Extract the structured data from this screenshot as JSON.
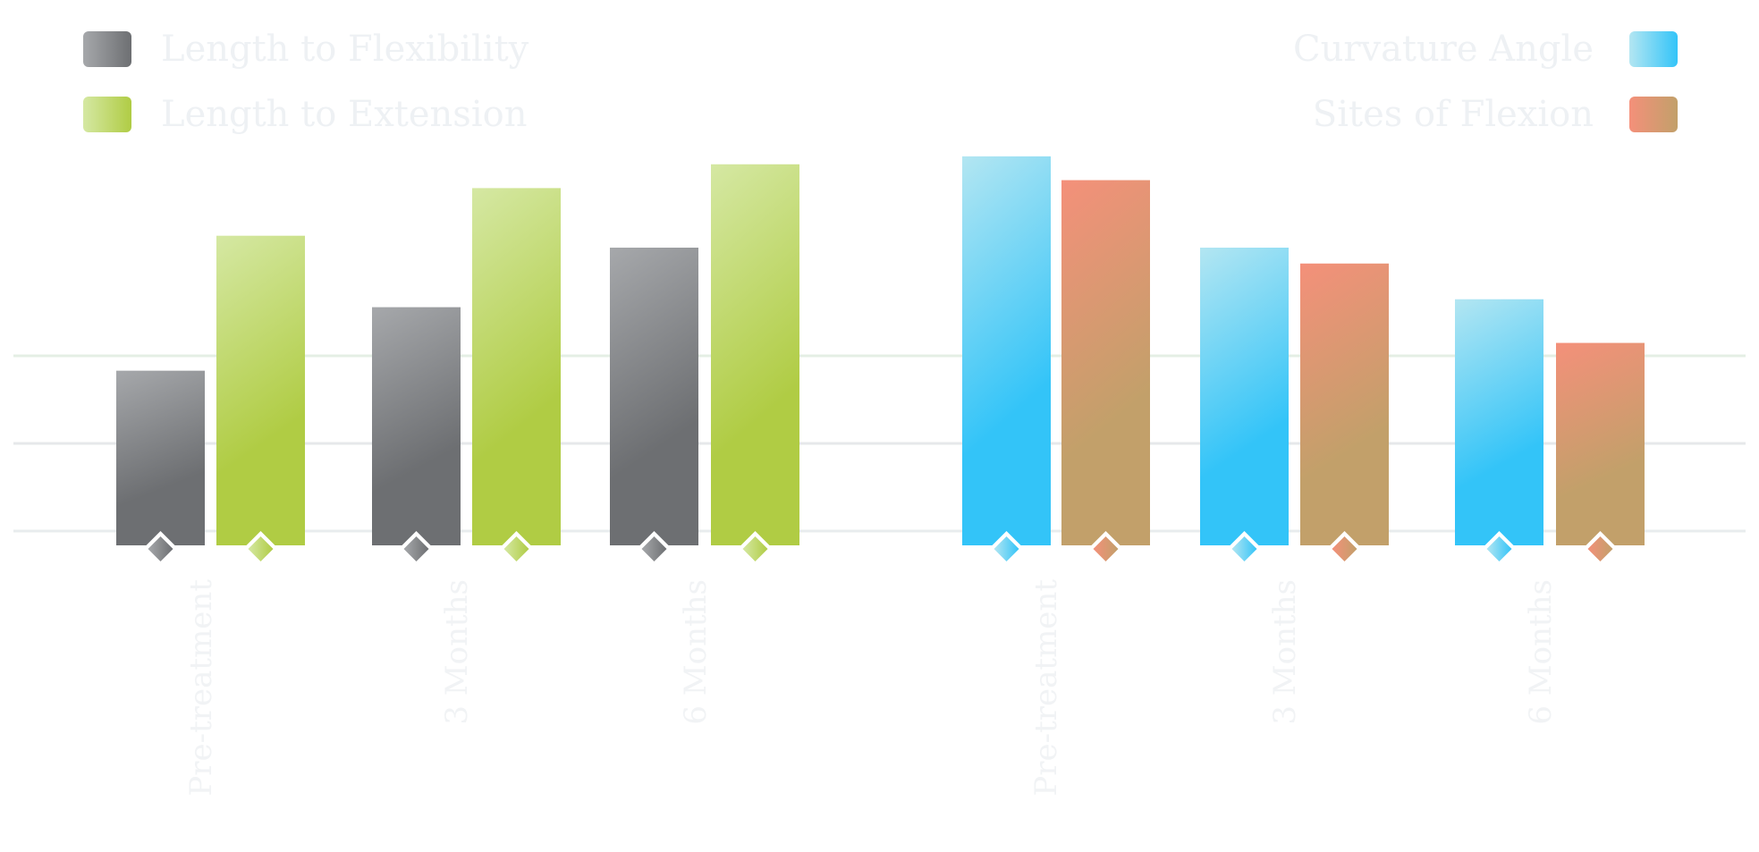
{
  "chart_data": {
    "type": "bar",
    "title": "",
    "xlabel": "",
    "ylabel": "",
    "ylim": [
      0,
      100
    ],
    "grid": true,
    "groups": [
      {
        "categories": [
          "Pre-treatment",
          "3 Months",
          "6 Months"
        ],
        "series": [
          {
            "name": "Length to Flexibility",
            "values": [
              44,
              60,
              75
            ],
            "color_top": "#a6a8ab",
            "color_bottom": "#6d6f72"
          },
          {
            "name": "Length to Extension",
            "values": [
              78,
              90,
              96
            ],
            "color_top": "#d5e8a3",
            "color_bottom": "#b0cc44"
          }
        ],
        "legend_position": "top-left"
      },
      {
        "categories": [
          "Pre-treatment",
          "3 Months",
          "6 Months"
        ],
        "series": [
          {
            "name": "Curvature Angle",
            "values": [
              98,
              75,
              62
            ],
            "color_top": "#b3e6f2",
            "color_bottom": "#33c4f8"
          },
          {
            "name": "Sites of Flexion",
            "values": [
              92,
              71,
              51
            ],
            "color_top": "#f4907a",
            "color_bottom": "#c2a06a"
          }
        ],
        "legend_position": "top-right"
      }
    ]
  }
}
